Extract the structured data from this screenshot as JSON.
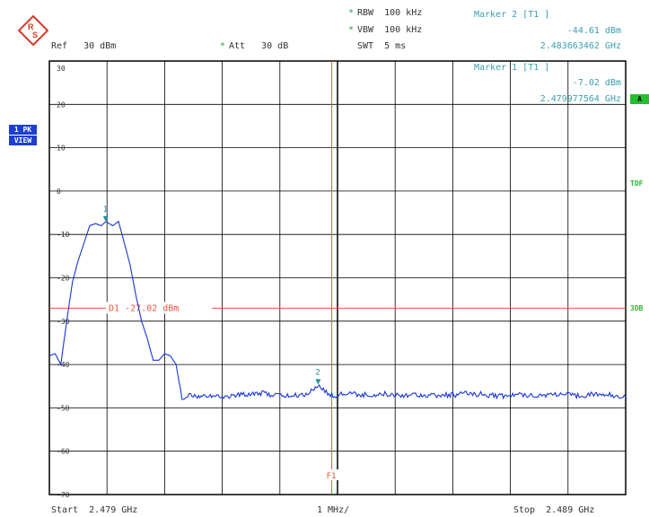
{
  "header": {
    "rbw": "RBW  100 kHz",
    "vbw": "VBW  100 kHz",
    "swt": "SWT  5 ms",
    "ref": "Ref   30 dBm",
    "att": "Att   30 dB",
    "star_mark": "*"
  },
  "marker2": {
    "title": "Marker 2 [T1 ]",
    "level": "-44.61 dBm",
    "freq": "2.483663462 GHz"
  },
  "marker1": {
    "title": "Marker 1 [T1 ]",
    "level": "-7.02 dBm",
    "freq": "2.479977564 GHz"
  },
  "left_badges": [
    "1 PK",
    "VIEW"
  ],
  "right_tags": [
    "A",
    "TDF",
    "3DB"
  ],
  "display_line": {
    "label": "D1 -27.02 dBm",
    "level_dbm": -27.02
  },
  "f1_label": "F1",
  "marker_labels": [
    "1",
    "2"
  ],
  "footer": {
    "start": "Start  2.479 GHz",
    "span": "1 MHz/",
    "stop": "Stop  2.489 GHz"
  },
  "colors": {
    "trace": "#1a35d8",
    "display_line": "#e8563c",
    "marker": "#1f8f9a",
    "grid": "#000000",
    "green_badge": "#22c02e"
  },
  "chart_data": {
    "type": "line",
    "x_range_ghz": [
      2.479,
      2.489
    ],
    "ylim_dbm": [
      -70,
      30
    ],
    "y_ticks": [
      "30",
      "20",
      "10",
      "0",
      "-10",
      "-20",
      "-30",
      "-40",
      "-50",
      "-60",
      "-70"
    ],
    "series": [
      {
        "x": [
          2.479,
          2.4791,
          2.4792,
          2.4793,
          2.4794,
          2.4795,
          2.4796,
          2.4797,
          2.4798,
          2.4799,
          2.47998,
          2.4801,
          2.4802,
          2.4803,
          2.4804,
          2.4805,
          2.4806,
          2.4807,
          2.4808,
          2.4809,
          2.481,
          2.4811,
          2.4812,
          2.4813,
          2.4814,
          2.4815,
          2.4817,
          2.482,
          2.4823,
          2.4826,
          2.4829,
          2.4832,
          2.4835,
          2.48366,
          2.4839,
          2.4842,
          2.4845,
          2.4848,
          2.4851,
          2.4854,
          2.4857,
          2.486,
          2.4863,
          2.4866,
          2.4869,
          2.4872,
          2.4875,
          2.4878,
          2.4881,
          2.4884,
          2.4887,
          2.489
        ],
        "y": [
          -38,
          -37.5,
          -40,
          -30,
          -21,
          -16,
          -12,
          -8,
          -7.5,
          -8,
          -7.02,
          -8,
          -7,
          -12,
          -17,
          -24,
          -30,
          -34,
          -39,
          -39,
          -37.5,
          -38,
          -40,
          -48,
          -47,
          -47.5,
          -47,
          -47.5,
          -47,
          -46.5,
          -47,
          -47.3,
          -46.8,
          -44.61,
          -47.2,
          -46.6,
          -47.1,
          -46.8,
          -47,
          -46.9,
          -47.2,
          -47,
          -46.7,
          -47,
          -47.3,
          -46.9,
          -47.1,
          -46.8,
          -47.2,
          -46.9,
          -47,
          -47.4
        ]
      }
    ],
    "markers": [
      {
        "label": "1",
        "x": 2.479977564,
        "y": -7.02
      },
      {
        "label": "2",
        "x": 2.483663462,
        "y": -44.61
      }
    ],
    "display_line_dbm": -27.02,
    "f1_ghz": 2.4839,
    "grid": true
  }
}
